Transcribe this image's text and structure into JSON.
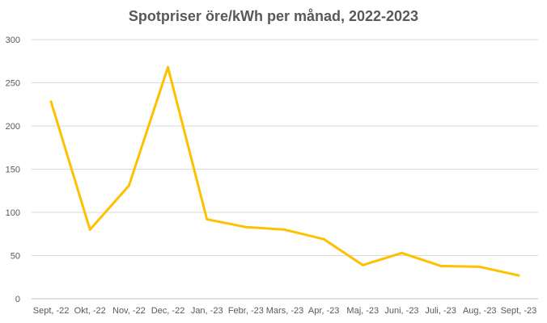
{
  "chart_data": {
    "type": "line",
    "title": "Spotpriser öre/kWh per månad, 2022-2023",
    "xlabel": "",
    "ylabel": "",
    "categories": [
      "Sept, -22",
      "Okt, -22",
      "Nov, -22",
      "Dec, -22",
      "Jan, -23",
      "Febr, -23",
      "Mars, -23",
      "Apr, -23",
      "Maj, -23",
      "Juni, -23",
      "Juli, -23",
      "Aug, -23",
      "Sept, -23"
    ],
    "series": [
      {
        "values": [
          228,
          80,
          131,
          268,
          92,
          83,
          80,
          69,
          39,
          53,
          38,
          37,
          27
        ]
      }
    ],
    "ylim": [
      0,
      300
    ],
    "yticks": [
      0,
      50,
      100,
      150,
      200,
      250,
      300
    ],
    "grid": true,
    "legend": "none",
    "colors": {
      "line": "#FFC000",
      "grid": "#d9d9d9",
      "text": "#595959"
    }
  }
}
